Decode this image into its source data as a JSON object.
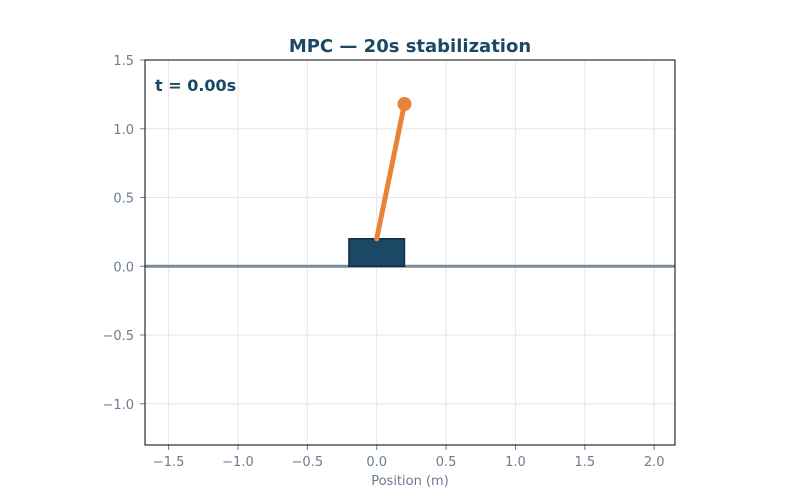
{
  "chart_data": {
    "type": "scatter",
    "title": "MPC — 20s stabilization",
    "xlabel": "Position (m)",
    "ylabel": "",
    "xlim": [
      -1.67,
      2.15
    ],
    "ylim": [
      -1.3,
      1.5
    ],
    "grid": true,
    "x_ticks": [
      -1.5,
      -1.0,
      -0.5,
      0.0,
      0.5,
      1.0,
      1.5,
      2.0
    ],
    "x_tick_labels": [
      "−1.5",
      "−1.0",
      "−0.5",
      "0.0",
      "0.5",
      "1.0",
      "1.5",
      "2.0"
    ],
    "y_ticks": [
      -1.0,
      -0.5,
      0.0,
      0.5,
      1.0,
      1.5
    ],
    "y_tick_labels": [
      "−1.0",
      "−0.5",
      "0.0",
      "0.5",
      "1.0",
      "1.5"
    ],
    "time_label": "t = 0.00s",
    "track": {
      "y": 0.0
    },
    "cart": {
      "x_center": 0.0,
      "width": 0.4,
      "height": 0.2,
      "y_bottom": 0.0
    },
    "pole": {
      "pivot": [
        0.0,
        0.2
      ],
      "tip": [
        0.2,
        1.18
      ]
    },
    "colors": {
      "title": "#1b4965",
      "time_label": "#1b4965",
      "cart_fill": "#1b4965",
      "cart_edge": "#0f2f44",
      "pole": "#e8833a",
      "track": "#7a8b9a",
      "ticks": "#6b7c93",
      "grid": "#e6e6e6",
      "axes_frame": "#000000"
    }
  }
}
